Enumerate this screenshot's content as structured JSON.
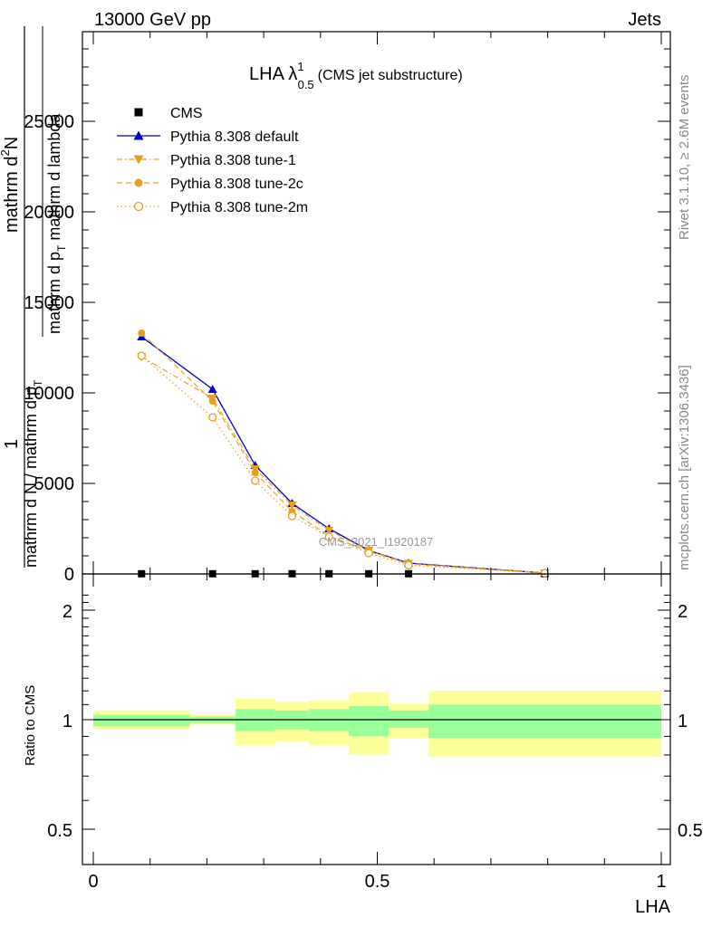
{
  "header": {
    "left": "13000 GeV pp",
    "right": "Jets"
  },
  "title": {
    "main": "LHA λ",
    "sup": "1",
    "sub": "0.5",
    "paren": "(CMS jet substructure)"
  },
  "ylabel_main": {
    "numerator_top": "mathrm d",
    "numerator_top_sup": "2",
    "numerator_top_end": "N",
    "numerator_bottom": "mathrm d p",
    "numerator_bottom_sub": "T",
    "numerator_bottom_end": " mathrm d lambda",
    "prefix_num": "1",
    "denominator": "mathrm d N / mathrm d p",
    "denominator_sub": "T"
  },
  "ylabel_ratio": "Ratio to CMS",
  "xlabel": "LHA",
  "side_labels": {
    "rivet": "Rivet 3.1.10, ≥ 2.6M events",
    "mcplots": "mcplots.cern.ch [arXiv:1306.3436]"
  },
  "watermark": "CMS_2021_I1920187",
  "legend": [
    {
      "label": "CMS",
      "color": "#000000",
      "marker": "square",
      "line": "none"
    },
    {
      "label": "Pythia 8.308 default",
      "color": "#0000cc",
      "marker": "triangle-up",
      "line": "solid"
    },
    {
      "label": "Pythia 8.308 tune-1",
      "color": "#e6a020",
      "marker": "triangle-down",
      "line": "dashdot"
    },
    {
      "label": "Pythia 8.308 tune-2c",
      "color": "#e6a020",
      "marker": "circle",
      "line": "dashed"
    },
    {
      "label": "Pythia 8.308 tune-2m",
      "color": "#e6a020",
      "marker": "open-circle",
      "line": "dotted"
    }
  ],
  "chart_data": {
    "type": "line",
    "x_axis": {
      "range": [
        -0.02,
        1.02
      ],
      "ticks": [
        0,
        0.5,
        1
      ],
      "tick_labels": [
        "0",
        "0.5",
        "1"
      ]
    },
    "main_y_axis": {
      "range": [
        0,
        30000
      ],
      "ticks": [
        0,
        5000,
        10000,
        15000,
        20000,
        25000
      ],
      "tick_labels": [
        "0",
        "5000",
        "10000",
        "15000",
        "20000",
        "25000"
      ]
    },
    "ratio_y_axis": {
      "range": [
        0.4,
        2.3
      ],
      "ticks": [
        0.5,
        1,
        2
      ],
      "tick_labels": [
        "0.5",
        "1",
        "2"
      ]
    },
    "bin_edges": [
      0,
      0.17,
      0.25,
      0.32,
      0.38,
      0.45,
      0.52,
      0.59,
      1.0
    ],
    "x": [
      0.085,
      0.21,
      0.285,
      0.35,
      0.415,
      0.485,
      0.555,
      0.795
    ],
    "series": [
      {
        "name": "CMS",
        "values": [
          10,
          10,
          10,
          10,
          10,
          10,
          10,
          10
        ]
      },
      {
        "name": "Pythia 8.308 default",
        "values": [
          13100,
          10200,
          6000,
          3900,
          2500,
          1300,
          600,
          50
        ]
      },
      {
        "name": "Pythia 8.308 tune-1",
        "values": [
          12000,
          9700,
          5800,
          3800,
          2400,
          1300,
          580,
          50
        ]
      },
      {
        "name": "Pythia 8.308 tune-2c",
        "values": [
          13300,
          9550,
          5600,
          3450,
          2100,
          1250,
          550,
          50
        ]
      },
      {
        "name": "Pythia 8.308 tune-2m",
        "values": [
          12050,
          8650,
          5150,
          3200,
          2050,
          1150,
          480,
          45
        ]
      }
    ],
    "ratio_band_inner": [
      [
        0.96,
        1.03
      ],
      [
        0.98,
        1.02
      ],
      [
        0.93,
        1.07
      ],
      [
        0.94,
        1.06
      ],
      [
        0.93,
        1.07
      ],
      [
        0.9,
        1.09
      ],
      [
        0.95,
        1.06
      ],
      [
        0.89,
        1.1
      ]
    ],
    "ratio_band_outer": [
      [
        0.94,
        1.06
      ],
      [
        0.97,
        1.03
      ],
      [
        0.85,
        1.14
      ],
      [
        0.87,
        1.12
      ],
      [
        0.85,
        1.13
      ],
      [
        0.8,
        1.19
      ],
      [
        0.89,
        1.11
      ],
      [
        0.79,
        1.2
      ]
    ],
    "ratio_line": 1,
    "colors": {
      "band_inner": "#99ff99",
      "band_outer": "#ffff99"
    }
  }
}
